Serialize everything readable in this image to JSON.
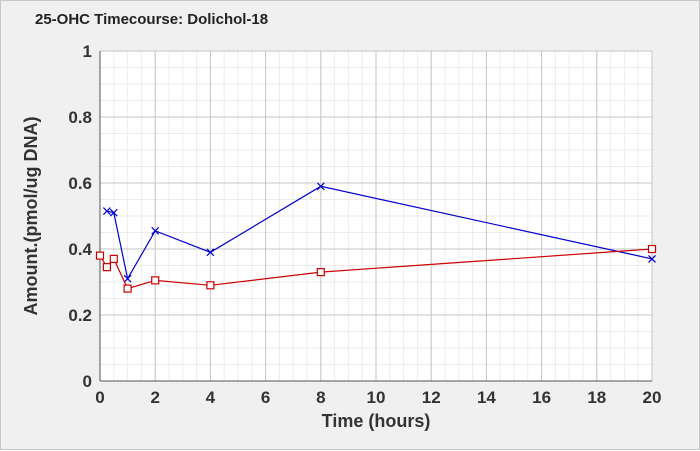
{
  "chart_data": {
    "type": "line",
    "title": "25-OHC Timecourse: Dolichol-18",
    "xlabel": "Time (hours)",
    "ylabel": "Amount.(pmol/ug DNA)",
    "xlim": [
      0,
      20
    ],
    "ylim": [
      0,
      1
    ],
    "xticks": [
      0,
      2,
      4,
      6,
      8,
      10,
      12,
      14,
      16,
      18,
      20
    ],
    "yticks": [
      0,
      0.2,
      0.4,
      0.6,
      0.8,
      1
    ],
    "ytick_labels": [
      "0",
      "0.2",
      "0.4",
      "0.6",
      "0.8",
      "1"
    ],
    "grid": true,
    "series": [
      {
        "color": "#0000cc",
        "marker": "x",
        "x": [
          0.25,
          0.5,
          1,
          2,
          4,
          8,
          20
        ],
        "y": [
          0.515,
          0.51,
          0.31,
          0.455,
          0.39,
          0.59,
          0.37
        ]
      },
      {
        "color": "#cc0000",
        "marker": "square",
        "x": [
          0,
          0.25,
          0.5,
          1,
          2,
          4,
          8,
          20
        ],
        "y": [
          0.38,
          0.345,
          0.37,
          0.28,
          0.305,
          0.29,
          0.33,
          0.4
        ]
      }
    ]
  }
}
